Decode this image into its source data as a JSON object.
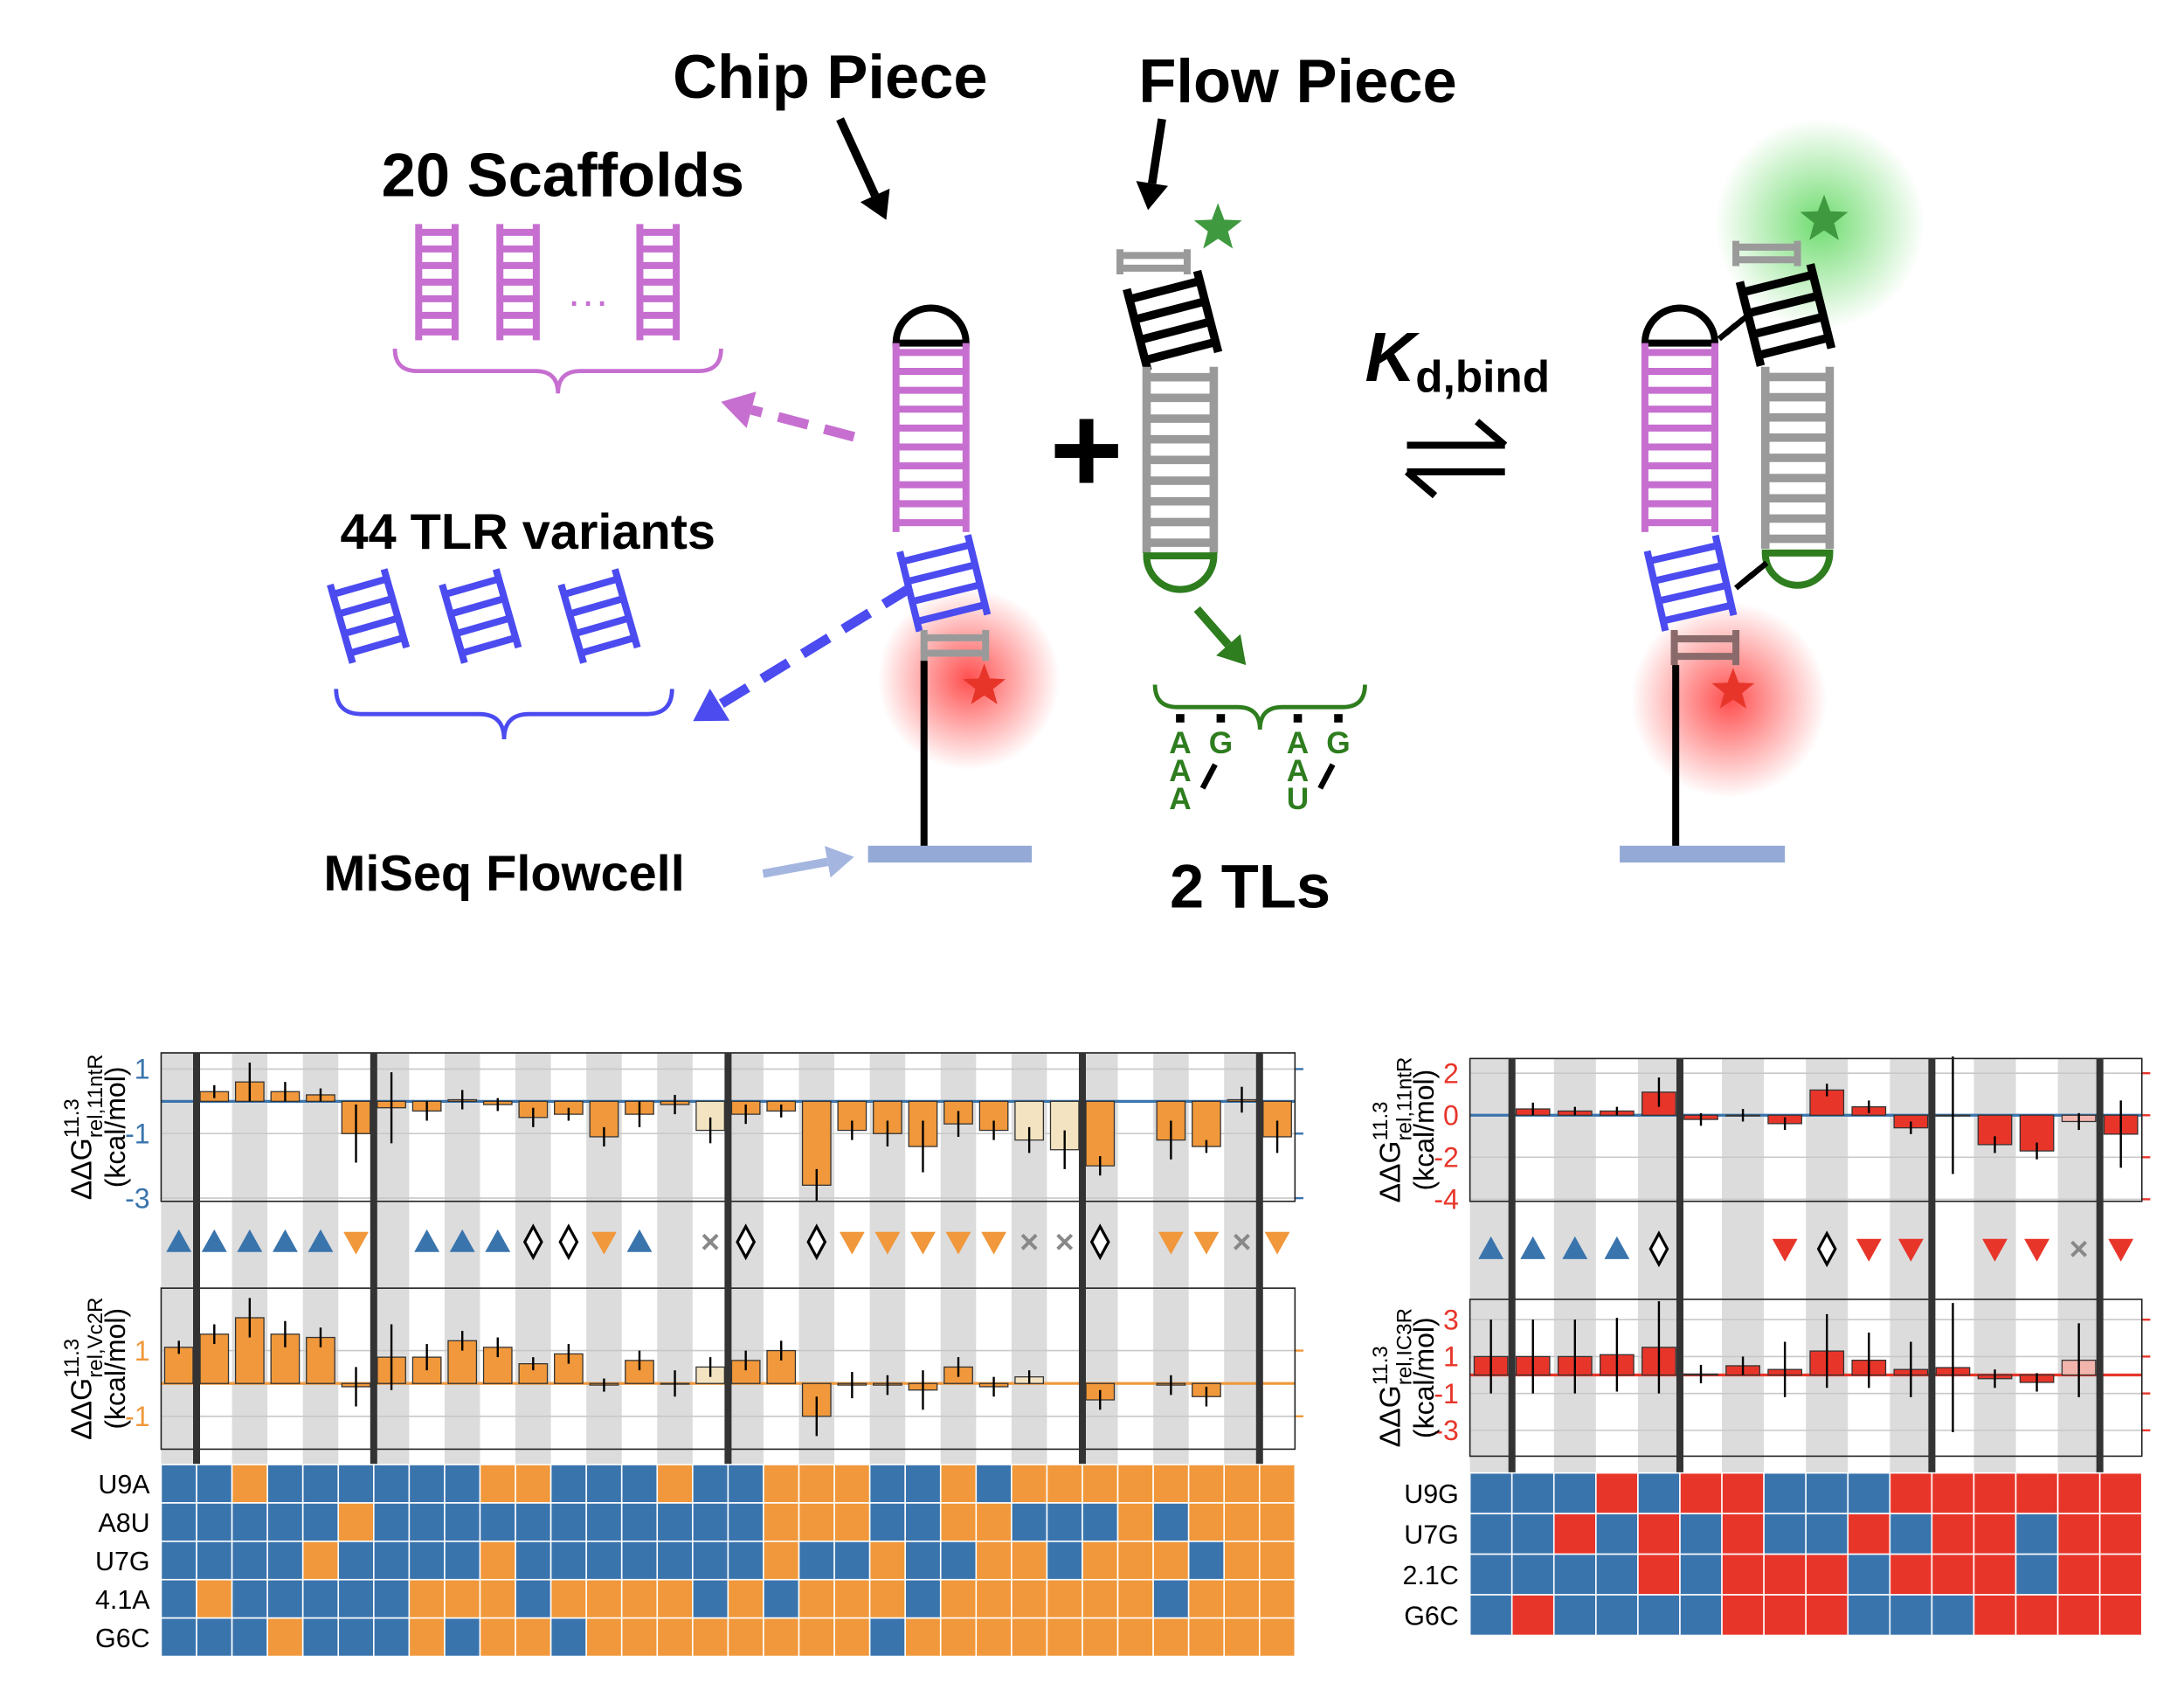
{
  "diagram": {
    "chip_piece": "Chip Piece",
    "flow_piece": "Flow Piece",
    "scaffolds": "20 Scaffolds",
    "ellipsis": "···",
    "tlr_variants": "44 TLR variants",
    "flowcell": "MiSeq Flowcell",
    "tls": "2 TLs",
    "plus": "+",
    "kd": {
      "main": "K",
      "sub": "d,bind"
    },
    "tl_sequences": [
      [
        "A",
        "A",
        "A",
        "G"
      ],
      [
        "A",
        "A",
        "U",
        "G"
      ]
    ]
  },
  "chart_data": [
    {
      "type": "bar",
      "charts": [
        {
          "ylabel": {
            "main": "ΔΔG",
            "sup": "11.3",
            "sub": "rel,11ntR",
            "unit": "(kcal/mol)"
          },
          "ylim": [
            -3.1,
            1.5
          ],
          "yticks": [
            1,
            -1,
            -3
          ],
          "tick_color": "#3a74ad",
          "zero_line_color": "#3a74ad",
          "values": [
            null,
            0.3,
            0.6,
            0.3,
            0.2,
            -1.0,
            -0.2,
            -0.3,
            0.05,
            -0.1,
            -0.5,
            -0.4,
            -1.1,
            -0.4,
            -0.1,
            -0.9,
            -0.4,
            -0.3,
            -2.6,
            -0.9,
            -1.0,
            -1.4,
            -0.7,
            -0.9,
            -1.2,
            -1.5,
            -2.0,
            null,
            -1.2,
            -1.4,
            0.05,
            -1.1
          ],
          "errors": [
            null,
            0.2,
            0.6,
            0.3,
            0.2,
            0.9,
            1.1,
            0.3,
            0.3,
            0.2,
            0.3,
            0.2,
            0.3,
            0.4,
            0.3,
            0.4,
            0.3,
            0.2,
            0.5,
            0.3,
            0.4,
            0.8,
            0.4,
            0.3,
            0.4,
            0.6,
            0.3,
            null,
            0.6,
            0.2,
            0.4,
            0.5
          ],
          "colors": [
            "#f0983b",
            "#f0983b",
            "#f0983b",
            "#f0983b",
            "#f0983b",
            "#f0983b",
            "#f0983b",
            "#f0983b",
            "#f0983b",
            "#f0983b",
            "#f0983b",
            "#f0983b",
            "#f0983b",
            "#f0983b",
            "#f0983b",
            "#f3e3c0",
            "#f0983b",
            "#f0983b",
            "#f0983b",
            "#f0983b",
            "#f0983b",
            "#f0983b",
            "#f0983b",
            "#f0983b",
            "#f3e3c0",
            "#f3e3c0",
            "#f0983b",
            "#f0983b",
            "#f0983b",
            "#f0983b",
            "#f0983b",
            "#f0983b"
          ]
        },
        {
          "ylabel": {
            "main": "ΔΔG",
            "sup": "11.3",
            "sub": "rel,Vc2R",
            "unit": "(kcal/mol)"
          },
          "ylim": [
            -2.0,
            2.9
          ],
          "yticks": [
            1,
            -1
          ],
          "tick_color": "#f0983b",
          "zero_line_color": "#f0983b",
          "values": [
            1.1,
            1.5,
            2.0,
            1.5,
            1.4,
            -0.1,
            0.8,
            0.8,
            1.3,
            1.1,
            0.6,
            0.9,
            -0.05,
            0.7,
            0.0,
            0.5,
            0.7,
            1.0,
            -1.0,
            -0.05,
            -0.05,
            -0.2,
            0.5,
            -0.1,
            0.2,
            null,
            -0.5,
            null,
            -0.05,
            -0.4,
            null,
            null
          ],
          "errors": [
            0.2,
            0.3,
            0.6,
            0.4,
            0.3,
            0.6,
            1.0,
            0.4,
            0.3,
            0.3,
            0.2,
            0.3,
            0.2,
            0.3,
            0.4,
            0.3,
            0.3,
            0.3,
            0.6,
            0.4,
            0.3,
            0.6,
            0.3,
            0.3,
            0.2,
            null,
            0.3,
            null,
            0.3,
            0.3,
            null,
            null
          ],
          "colors": [
            "#f0983b",
            "#f0983b",
            "#f0983b",
            "#f0983b",
            "#f0983b",
            "#f0983b",
            "#f0983b",
            "#f0983b",
            "#f0983b",
            "#f0983b",
            "#f0983b",
            "#f0983b",
            "#f0983b",
            "#f0983b",
            "#f0983b",
            "#f3e3c0",
            "#f0983b",
            "#f0983b",
            "#f0983b",
            "#f0983b",
            "#f0983b",
            "#f0983b",
            "#f0983b",
            "#f0983b",
            "#f3e3c0",
            "#f0983b",
            "#f0983b",
            "#f0983b",
            "#f0983b",
            "#f0983b",
            "#f0983b",
            "#f0983b"
          ]
        }
      ],
      "group_boundaries": [
        1,
        6,
        16,
        26,
        31
      ],
      "markers": [
        "up",
        "up",
        "up",
        "up",
        "up",
        "down",
        null,
        "up",
        "up",
        "up",
        "diamond",
        "diamond",
        "down",
        "up",
        null,
        "x",
        "diamond",
        null,
        "diamond",
        "down",
        "down",
        "down",
        "down",
        "down",
        "x",
        "x",
        "diamond",
        null,
        "down",
        "down",
        "x",
        "down"
      ],
      "marker_colors": {
        "up": "#3a74ad",
        "down": "#f0983b",
        "diamond": "#000000",
        "x": "#888888"
      },
      "heatmap": {
        "rows": [
          "U9A",
          "A8U",
          "U7G",
          "4.1A",
          "G6C"
        ],
        "colors": [
          "#3a74ad",
          "#f0983b"
        ],
        "cells": [
          [
            0,
            0,
            1,
            0,
            0,
            0,
            0,
            0,
            0,
            1,
            1,
            0,
            0,
            0,
            1,
            0,
            0,
            1,
            1,
            1,
            0,
            0,
            1,
            0,
            1,
            1,
            1,
            1,
            1,
            1,
            1,
            1
          ],
          [
            0,
            0,
            0,
            0,
            0,
            1,
            0,
            0,
            0,
            0,
            0,
            0,
            0,
            0,
            0,
            0,
            0,
            1,
            1,
            1,
            0,
            0,
            1,
            1,
            0,
            0,
            0,
            1,
            0,
            1,
            1,
            1
          ],
          [
            0,
            0,
            0,
            0,
            1,
            0,
            0,
            0,
            0,
            1,
            0,
            0,
            0,
            0,
            0,
            0,
            0,
            1,
            0,
            0,
            1,
            0,
            0,
            1,
            1,
            0,
            1,
            1,
            1,
            0,
            1,
            1
          ],
          [
            0,
            1,
            0,
            0,
            0,
            0,
            0,
            1,
            1,
            1,
            0,
            1,
            1,
            1,
            1,
            0,
            1,
            0,
            1,
            1,
            1,
            0,
            1,
            1,
            1,
            1,
            1,
            1,
            0,
            1,
            1,
            1
          ],
          [
            0,
            0,
            0,
            1,
            0,
            0,
            0,
            1,
            0,
            1,
            1,
            0,
            1,
            1,
            1,
            1,
            1,
            1,
            1,
            1,
            0,
            1,
            1,
            1,
            1,
            1,
            1,
            1,
            1,
            1,
            1,
            1
          ]
        ]
      }
    },
    {
      "type": "bar",
      "charts": [
        {
          "ylabel": {
            "main": "ΔΔG",
            "sup": "11.3",
            "sub": "rel,11ntR",
            "unit": "(kcal/mol)"
          },
          "ylim": [
            -4.1,
            2.7
          ],
          "yticks": [
            2,
            0,
            -2,
            -4
          ],
          "tick_color": "#e8352a",
          "zero_line_color": "#3a74ad",
          "values": [
            null,
            0.3,
            0.2,
            0.2,
            1.1,
            -0.2,
            0.0,
            -0.4,
            1.2,
            0.4,
            -0.6,
            0.0,
            -1.4,
            -1.7,
            -0.3,
            -0.9
          ],
          "errors": [
            null,
            0.3,
            0.2,
            0.2,
            0.7,
            0.3,
            0.3,
            0.3,
            0.3,
            0.3,
            0.3,
            2.8,
            0.4,
            0.4,
            0.4,
            1.6
          ],
          "colors": [
            "#e8352a",
            "#e8352a",
            "#e8352a",
            "#e8352a",
            "#e8352a",
            "#e8352a",
            "#e8352a",
            "#e8352a",
            "#e8352a",
            "#e8352a",
            "#e8352a",
            "#e8352a",
            "#e8352a",
            "#e8352a",
            "#f2b5ae",
            "#e8352a"
          ]
        },
        {
          "ylabel": {
            "main": "ΔΔG",
            "sup": "11.3",
            "sub": "rel,IC3R",
            "unit": "(kcal/mol)"
          },
          "ylim": [
            -4.4,
            4.1
          ],
          "yticks": [
            3,
            1,
            -1,
            -3
          ],
          "tick_color": "#e8352a",
          "zero_line_color": "#e8352a",
          "values": [
            1.0,
            1.0,
            1.0,
            1.1,
            1.5,
            0.05,
            0.5,
            0.3,
            1.3,
            0.8,
            0.3,
            0.4,
            -0.2,
            -0.4,
            0.8,
            null
          ],
          "errors": [
            2.0,
            2.0,
            2.0,
            2.0,
            2.5,
            0.5,
            0.5,
            1.5,
            2.0,
            1.5,
            1.5,
            3.5,
            0.5,
            0.5,
            2.0,
            null
          ],
          "colors": [
            "#e8352a",
            "#e8352a",
            "#e8352a",
            "#e8352a",
            "#e8352a",
            "#e8352a",
            "#e8352a",
            "#e8352a",
            "#e8352a",
            "#e8352a",
            "#e8352a",
            "#e8352a",
            "#e8352a",
            "#e8352a",
            "#f2b5ae",
            "#e8352a"
          ]
        }
      ],
      "group_boundaries": [
        1,
        5,
        11,
        15
      ],
      "markers": [
        "up",
        "up",
        "up",
        "up",
        "diamond",
        null,
        null,
        "down",
        "diamond",
        "down",
        "down",
        null,
        "down",
        "down",
        "x",
        "down"
      ],
      "marker_colors": {
        "up": "#3a74ad",
        "down": "#e8352a",
        "diamond": "#000000",
        "x": "#888888"
      },
      "heatmap": {
        "rows": [
          "U9G",
          "U7G",
          "2.1C",
          "G6C"
        ],
        "colors": [
          "#3a74ad",
          "#e8352a"
        ],
        "cells": [
          [
            0,
            0,
            0,
            1,
            0,
            1,
            1,
            0,
            0,
            0,
            1,
            1,
            1,
            1,
            1,
            1
          ],
          [
            0,
            0,
            1,
            0,
            1,
            0,
            1,
            0,
            0,
            1,
            0,
            1,
            1,
            0,
            1,
            1
          ],
          [
            0,
            0,
            0,
            0,
            1,
            0,
            1,
            1,
            1,
            0,
            1,
            1,
            1,
            0,
            1,
            1
          ],
          [
            0,
            1,
            0,
            0,
            0,
            0,
            1,
            1,
            1,
            0,
            0,
            0,
            1,
            1,
            1,
            1
          ]
        ]
      }
    }
  ]
}
